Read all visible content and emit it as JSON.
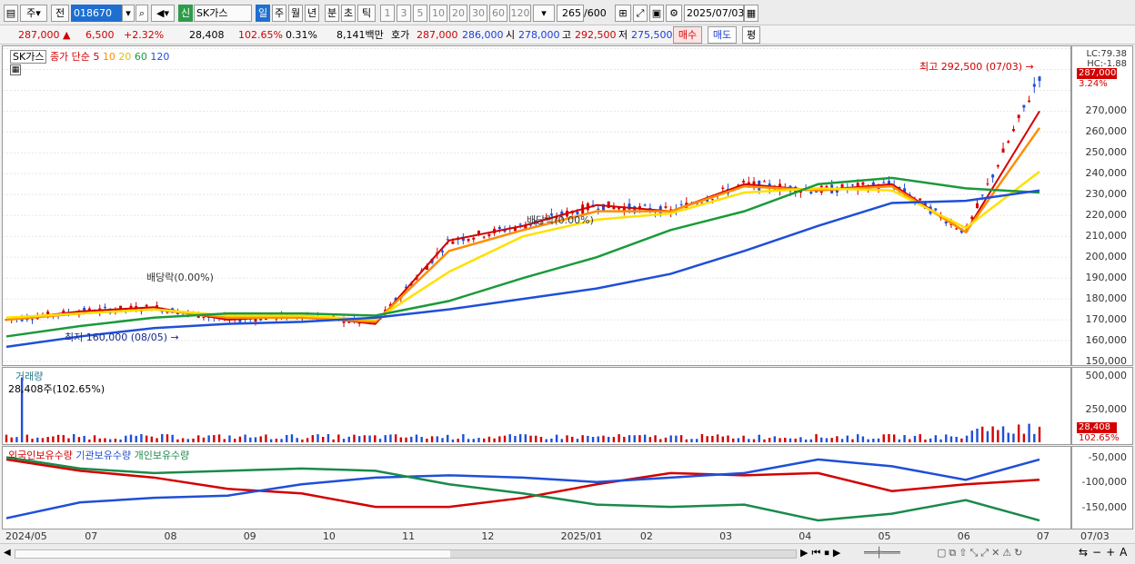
{
  "toolbar": {
    "period_selected": "일",
    "buttons": [
      "주",
      "전"
    ],
    "code_value": "018670",
    "type_badge": "신",
    "name_value": "SK가스",
    "periods": [
      "일",
      "주",
      "월",
      "년",
      "분",
      "초",
      "틱"
    ],
    "numbers": [
      "1",
      "3",
      "5",
      "10",
      "20",
      "30",
      "60",
      "120"
    ],
    "count_value": "265",
    "count_total": "/600",
    "date_value": "2025/07/03"
  },
  "infobar": {
    "price": "287,000",
    "change": "6,500",
    "change_pct": "+2.32%",
    "volume": "28,408",
    "vol_ratio": "102.65%",
    "turnover": "0.31%",
    "amount": "8,141백만",
    "quote_label": "호가",
    "ask": "287,000",
    "bid": "286,000",
    "open_label": "시",
    "open": "278,000",
    "high_label": "고",
    "high": "292,500",
    "low_label": "저",
    "low": "275,500",
    "buy_label": "매수",
    "sell_label": "매도",
    "flat_label": "평"
  },
  "price_panel": {
    "stock_label": "SK가스",
    "ma_title": "종가 단순",
    "ma_periods": [
      "5",
      "10",
      "20",
      "60",
      "120"
    ],
    "ma_colors": [
      "#d40000",
      "#ff8c00",
      "#ffe000",
      "#1a9a3a",
      "#1f4fd8"
    ],
    "lc": "LC:79.38",
    "hc": "HC:-1.88",
    "price_tag": "287,000",
    "pct_tag": "3.24%",
    "annotations": {
      "high": "최고 292,500 (07/03)",
      "low": "최저 160,000 (08/05)",
      "div1": "배당락(0.00%)",
      "div2": "배당락(0.00%)"
    }
  },
  "volume_panel": {
    "title": "거래량",
    "value_text": "28,408주(102.65%)",
    "tag": "28,408",
    "pct_tag": "102.65%"
  },
  "holding_panel": {
    "legend": [
      "외국인보유수량",
      "기관보유수량",
      "개인보유수량"
    ],
    "colors": [
      "#d40000",
      "#1f4fd8",
      "#1a8a4a"
    ]
  },
  "y_ticks_price": [
    "270,000",
    "260,000",
    "250,000",
    "240,000",
    "230,000",
    "220,000",
    "210,000",
    "200,000",
    "190,000",
    "180,000",
    "170,000",
    "160,000",
    "150,000"
  ],
  "y_ticks_volume": [
    "500,000",
    "250,000"
  ],
  "y_ticks_holding": [
    "-50,000",
    "-100,000",
    "-150,000"
  ],
  "x_ticks": [
    "2024/05",
    "07",
    "08",
    "09",
    "10",
    "11",
    "12",
    "2025/01",
    "02",
    "03",
    "04",
    "05",
    "06",
    "07"
  ],
  "x_tick_right": "07/03",
  "chart_data": {
    "type": "line",
    "title": "",
    "price_series": {
      "name": "종가",
      "x": [
        "2024/05",
        "2024/06",
        "2024/07",
        "2024/08",
        "2024/09",
        "2024/10",
        "2024/11",
        "2024/12",
        "2025/01",
        "2025/02",
        "2025/03",
        "2025/04",
        "2025/05",
        "2025/06",
        "2025/07"
      ],
      "values": [
        170000,
        174000,
        176000,
        170000,
        172000,
        168000,
        208000,
        215000,
        225000,
        222000,
        235000,
        232000,
        235000,
        212000,
        287000
      ]
    },
    "ma_series": [
      {
        "name": "5",
        "values": [
          170000,
          174000,
          176000,
          170000,
          172000,
          168000,
          208000,
          215000,
          225000,
          222000,
          235000,
          232000,
          235000,
          212000,
          270000
        ]
      },
      {
        "name": "10",
        "values": [
          170000,
          173000,
          175000,
          171000,
          171000,
          169000,
          203000,
          213000,
          222000,
          222000,
          234000,
          232000,
          234000,
          212000,
          262000
        ]
      },
      {
        "name": "20",
        "values": [
          171000,
          173000,
          175000,
          172000,
          172000,
          170000,
          193000,
          210000,
          218000,
          221000,
          231000,
          233000,
          232000,
          214000,
          241000
        ]
      },
      {
        "name": "60",
        "values": [
          162000,
          167000,
          171000,
          173000,
          173000,
          172000,
          179000,
          190000,
          200000,
          213000,
          222000,
          235000,
          238000,
          233000,
          231000
        ]
      },
      {
        "name": "120",
        "values": [
          157000,
          162000,
          166000,
          168000,
          169000,
          171000,
          175000,
          180000,
          185000,
          192000,
          203000,
          215000,
          226000,
          227000,
          232000
        ]
      }
    ],
    "ylim": [
      150000,
      295000
    ],
    "holding_series": [
      {
        "name": "외국인보유수량",
        "values": [
          -55000,
          -80000,
          -95000,
          -120000,
          -130000,
          -160000,
          -160000,
          -140000,
          -110000,
          -85000,
          -90000,
          -85000,
          -125000,
          -110000,
          -100000
        ]
      },
      {
        "name": "기관보유수량",
        "values": [
          -185000,
          -150000,
          -140000,
          -135000,
          -110000,
          -95000,
          -90000,
          -95000,
          -105000,
          -95000,
          -85000,
          -55000,
          -70000,
          -100000,
          -55000
        ]
      },
      {
        "name": "개인보유수량",
        "values": [
          -50000,
          -75000,
          -85000,
          -80000,
          -75000,
          -80000,
          -110000,
          -130000,
          -155000,
          -160000,
          -155000,
          -190000,
          -175000,
          -145000,
          -190000
        ]
      }
    ],
    "holding_ylim": [
      -200000,
      -35000
    ]
  }
}
